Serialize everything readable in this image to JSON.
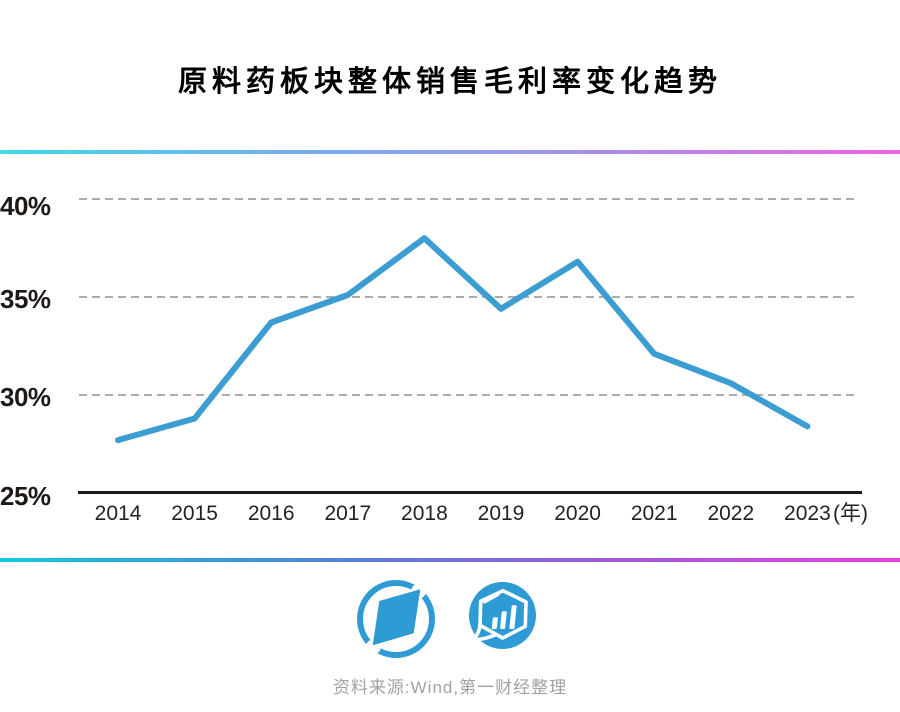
{
  "page": {
    "title": "原料药板块整体销售毛利率变化趋势"
  },
  "chart_data": {
    "type": "line",
    "title": "原料药板块整体销售毛利率变化趋势",
    "categories": [
      "2014",
      "2015",
      "2016",
      "2017",
      "2018",
      "2019",
      "2020",
      "2021",
      "2022",
      "2023"
    ],
    "values": [
      27.7,
      28.8,
      33.7,
      35.1,
      38.0,
      34.4,
      36.8,
      32.1,
      30.6,
      28.4
    ],
    "series_name": "原料药板块整体销售毛利率",
    "xlabel": "年",
    "unit_label": "(年)",
    "ylabel": "",
    "y_ticks": [
      "40%",
      "35%",
      "30%",
      "25%"
    ],
    "ylim": [
      25,
      42
    ],
    "grid": "horizontal-dashed",
    "legend": "none",
    "line_color": "#3B9DD1"
  },
  "footer": {
    "source": "资料来源:Wind,第一财经整理",
    "logos": [
      "yicai-compass-logo",
      "yicai-data-hexagon-logo"
    ]
  },
  "colors": {
    "line": "#3B9DD1",
    "logo_blue": "#2E9BD5",
    "gridline": "#ACACAC",
    "axis": "#1A1A1A",
    "divider_gradient_start": "#0ECBDC",
    "divider_gradient_end": "#EC3EE0",
    "source_text": "#A2A2A2"
  }
}
